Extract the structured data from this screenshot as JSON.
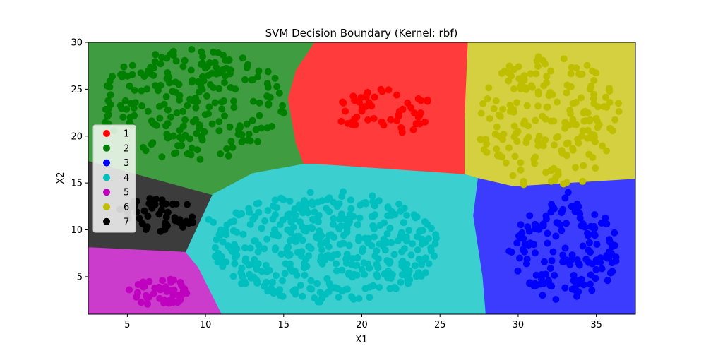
{
  "chart_data": {
    "type": "scatter",
    "title": "SVM Decision Boundary (Kernel: rbf)",
    "xlabel": "X1",
    "ylabel": "X2",
    "xlim": [
      2.5,
      37.5
    ],
    "ylim": [
      1,
      30
    ],
    "xticks": [
      5,
      10,
      15,
      20,
      25,
      30,
      35
    ],
    "yticks": [
      5,
      10,
      15,
      20,
      25,
      30
    ],
    "grid": false,
    "legend_position": "center-left",
    "colors": {
      "1": "#ff0000",
      "2": "#008000",
      "3": "#0000ff",
      "4": "#00bfbf",
      "5": "#bf00bf",
      "6": "#bfbf00",
      "7": "#000000"
    },
    "region_colors": {
      "1": "#ff3b3b",
      "2": "#409c40",
      "3": "#3c3cff",
      "4": "#3ccfcf",
      "5": "#cc3ccc",
      "6": "#d4d040",
      "7": "#3c3c3c"
    },
    "regions": [
      {
        "class": "2",
        "polygon": [
          [
            2.5,
            30
          ],
          [
            17,
            30
          ],
          [
            15.8,
            27
          ],
          [
            15.3,
            24
          ],
          [
            15.8,
            19.2
          ],
          [
            16.3,
            17
          ],
          [
            13,
            16
          ],
          [
            10.4,
            13.7
          ],
          [
            2.5,
            17.3
          ]
        ]
      },
      {
        "class": "1",
        "polygon": [
          [
            17,
            30
          ],
          [
            26.8,
            30
          ],
          [
            26.6,
            22
          ],
          [
            26.6,
            15.9
          ],
          [
            17,
            17
          ],
          [
            16.3,
            17
          ],
          [
            15.8,
            19.2
          ],
          [
            15.3,
            24
          ],
          [
            15.8,
            27
          ]
        ]
      },
      {
        "class": "6",
        "polygon": [
          [
            26.8,
            30
          ],
          [
            37.5,
            30
          ],
          [
            37.5,
            15.4
          ],
          [
            29.7,
            14.6
          ],
          [
            27.4,
            15.5
          ],
          [
            26.6,
            15.9
          ],
          [
            26.6,
            22
          ]
        ]
      },
      {
        "class": "3",
        "polygon": [
          [
            37.5,
            15.4
          ],
          [
            29.7,
            14.6
          ],
          [
            27.4,
            15.5
          ],
          [
            27.1,
            11.5
          ],
          [
            27.7,
            5
          ],
          [
            27.9,
            1
          ],
          [
            37.5,
            1
          ]
        ]
      },
      {
        "class": "4",
        "polygon": [
          [
            16.3,
            17
          ],
          [
            17,
            17
          ],
          [
            26.6,
            15.9
          ],
          [
            27.4,
            15.5
          ],
          [
            27.1,
            11.5
          ],
          [
            27.7,
            5
          ],
          [
            27.9,
            1
          ],
          [
            11,
            1
          ],
          [
            9.5,
            6
          ],
          [
            8.7,
            7.6
          ],
          [
            10.4,
            13.7
          ],
          [
            13,
            16
          ]
        ]
      },
      {
        "class": "7",
        "polygon": [
          [
            2.5,
            17.3
          ],
          [
            10.4,
            13.7
          ],
          [
            8.7,
            7.6
          ],
          [
            2.5,
            8.1
          ]
        ]
      },
      {
        "class": "5",
        "polygon": [
          [
            2.5,
            8.1
          ],
          [
            8.7,
            7.6
          ],
          [
            9.5,
            6
          ],
          [
            11,
            1
          ],
          [
            2.5,
            1
          ]
        ]
      }
    ],
    "series": [
      {
        "name": "1",
        "center": [
          21.5,
          22.6
        ],
        "spread": [
          3.2,
          2.4
        ],
        "count": 55
      },
      {
        "name": "2",
        "center": [
          9.2,
          23.4
        ],
        "spread": [
          6.0,
          6.0
        ],
        "count": 230
      },
      {
        "name": "3",
        "center": [
          33.0,
          7.7
        ],
        "spread": [
          3.6,
          5.2
        ],
        "count": 150
      },
      {
        "name": "4",
        "center": [
          17.7,
          8.2
        ],
        "spread": [
          7.2,
          6.0
        ],
        "count": 420
      },
      {
        "name": "5",
        "center": [
          7.0,
          3.4
        ],
        "spread": [
          2.0,
          1.5
        ],
        "count": 42
      },
      {
        "name": "6",
        "center": [
          32.0,
          21.5
        ],
        "spread": [
          4.6,
          7.2
        ],
        "count": 200
      },
      {
        "name": "7",
        "center": [
          6.9,
          11.6
        ],
        "spread": [
          2.6,
          1.8
        ],
        "count": 50
      }
    ],
    "extra_points": [
      {
        "class": "4",
        "x": 10.2,
        "y": 11.1
      },
      {
        "class": "4",
        "x": 10.5,
        "y": 10.8
      },
      {
        "class": "6",
        "x": 32.4,
        "y": 15.6
      },
      {
        "class": "6",
        "x": 32.9,
        "y": 14.9
      },
      {
        "class": "3",
        "x": 33.2,
        "y": 14.0
      },
      {
        "class": "3",
        "x": 33.0,
        "y": 13.4
      }
    ],
    "legend": [
      "1",
      "2",
      "3",
      "4",
      "5",
      "6",
      "7"
    ]
  }
}
